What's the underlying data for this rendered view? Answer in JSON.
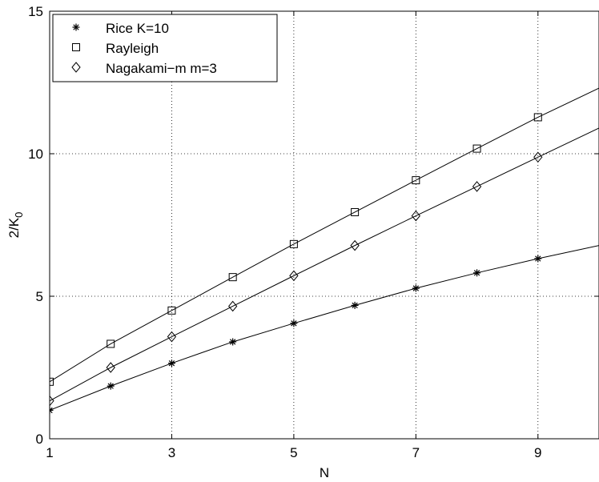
{
  "chart_data": {
    "type": "line",
    "xlabel": "N",
    "ylabel": "2/K",
    "ylabel_subscript": "0",
    "xlim": [
      1,
      10
    ],
    "ylim": [
      0,
      15
    ],
    "xticks": [
      1,
      3,
      5,
      7,
      9
    ],
    "yticks": [
      0,
      5,
      10,
      15
    ],
    "grid": true,
    "legend_position": "top-left",
    "series": [
      {
        "name": "Rice K=10",
        "marker": "asterisk",
        "x": [
          1,
          2,
          3,
          4,
          5,
          6,
          7,
          8,
          9,
          10
        ],
        "values": [
          1.0,
          1.85,
          2.65,
          3.4,
          4.05,
          4.68,
          5.28,
          5.82,
          6.32,
          6.78
        ]
      },
      {
        "name": "Rayleigh",
        "marker": "square",
        "x": [
          1,
          2,
          3,
          4,
          5,
          6,
          7,
          8,
          9,
          10
        ],
        "values": [
          2.0,
          3.33,
          4.5,
          5.67,
          6.83,
          7.95,
          9.07,
          10.18,
          11.28,
          12.3
        ]
      },
      {
        "name": "Nagakami−m m=3",
        "marker": "diamond",
        "x": [
          1,
          2,
          3,
          4,
          5,
          6,
          7,
          8,
          9,
          10
        ],
        "values": [
          1.33,
          2.5,
          3.58,
          4.65,
          5.72,
          6.78,
          7.82,
          8.85,
          9.88,
          10.9
        ]
      }
    ]
  }
}
